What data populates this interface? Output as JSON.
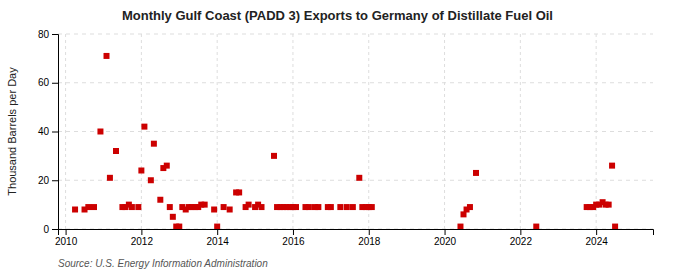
{
  "chart_data": {
    "type": "scatter",
    "title": "Monthly Gulf Coast (PADD 3) Exports to Germany of Distillate Fuel Oil",
    "ylabel": "Thousand Barrels per Day",
    "annotation": "Source: U.S. Energy Information Administration",
    "color": "#cc0000",
    "marker": "square",
    "grid": true,
    "xlim": [
      2009.8,
      2025.5
    ],
    "ylim": [
      0,
      80
    ],
    "xticks": [
      2010,
      2012,
      2014,
      2016,
      2018,
      2020,
      2022,
      2024
    ],
    "yticks": [
      0,
      20,
      40,
      60,
      80
    ],
    "x": [
      2010.25,
      2010.5,
      2010.6,
      2010.75,
      2010.92,
      2011.08,
      2011.17,
      2011.33,
      2011.5,
      2011.58,
      2011.67,
      2011.75,
      2011.92,
      2012.0,
      2012.08,
      2012.25,
      2012.33,
      2012.5,
      2012.58,
      2012.67,
      2012.75,
      2012.83,
      2012.92,
      2013.0,
      2013.08,
      2013.17,
      2013.25,
      2013.33,
      2013.42,
      2013.5,
      2013.58,
      2013.67,
      2013.92,
      2014.0,
      2014.17,
      2014.33,
      2014.5,
      2014.58,
      2014.75,
      2014.83,
      2015.0,
      2015.08,
      2015.17,
      2015.5,
      2015.58,
      2015.67,
      2015.75,
      2015.83,
      2015.92,
      2016.0,
      2016.08,
      2016.33,
      2016.42,
      2016.58,
      2016.67,
      2016.92,
      2017.0,
      2017.25,
      2017.42,
      2017.58,
      2017.75,
      2017.83,
      2017.92,
      2018.0,
      2018.08,
      2020.42,
      2020.5,
      2020.58,
      2020.67,
      2020.83,
      2022.42,
      2023.75,
      2023.83,
      2023.92,
      2024.0,
      2024.08,
      2024.17,
      2024.25,
      2024.33,
      2024.42,
      2024.5
    ],
    "values": [
      8,
      8,
      9,
      9,
      40,
      71,
      21,
      32,
      9,
      9,
      10,
      9,
      9,
      24,
      42,
      20,
      35,
      12,
      25,
      26,
      9,
      5,
      1,
      1,
      9,
      8,
      9,
      9,
      9,
      9,
      10,
      10,
      8,
      1,
      9,
      8,
      15,
      15,
      9,
      10,
      9,
      10,
      9,
      30,
      9,
      9,
      9,
      9,
      9,
      9,
      9,
      9,
      9,
      9,
      9,
      9,
      9,
      9,
      9,
      9,
      21,
      9,
      9,
      9,
      9,
      1,
      6,
      8,
      9,
      23,
      1,
      9,
      9,
      9,
      10,
      10,
      11,
      10,
      10,
      26,
      1
    ]
  }
}
